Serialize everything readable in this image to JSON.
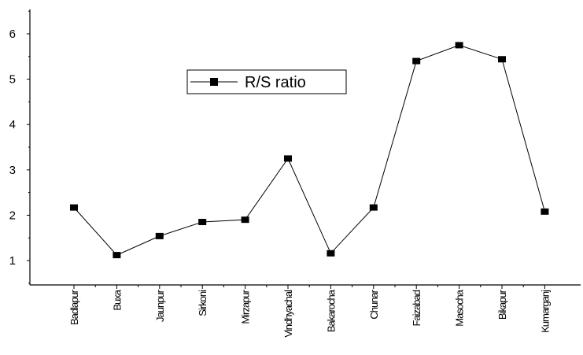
{
  "chart_data": {
    "type": "line",
    "categories": [
      "Badlapur",
      "Buxa",
      "Jaunpur",
      "Sirkoni",
      "Mirzapur",
      "Vindhyachal",
      "Bakarocha",
      "Chunar",
      "Faizabad",
      "Masocha",
      "Bikapur",
      "Kumarganj"
    ],
    "series": [
      {
        "name": "R/S ratio",
        "values": [
          2.17,
          1.12,
          1.54,
          1.85,
          1.9,
          3.25,
          1.16,
          2.17,
          5.4,
          5.75,
          5.44,
          2.08
        ],
        "color": "#000000",
        "marker": "square"
      }
    ],
    "yticks": [
      1,
      2,
      3,
      4,
      5,
      6
    ],
    "ylim": [
      0.5,
      6.5
    ],
    "legend": "top-center",
    "grid": false
  }
}
